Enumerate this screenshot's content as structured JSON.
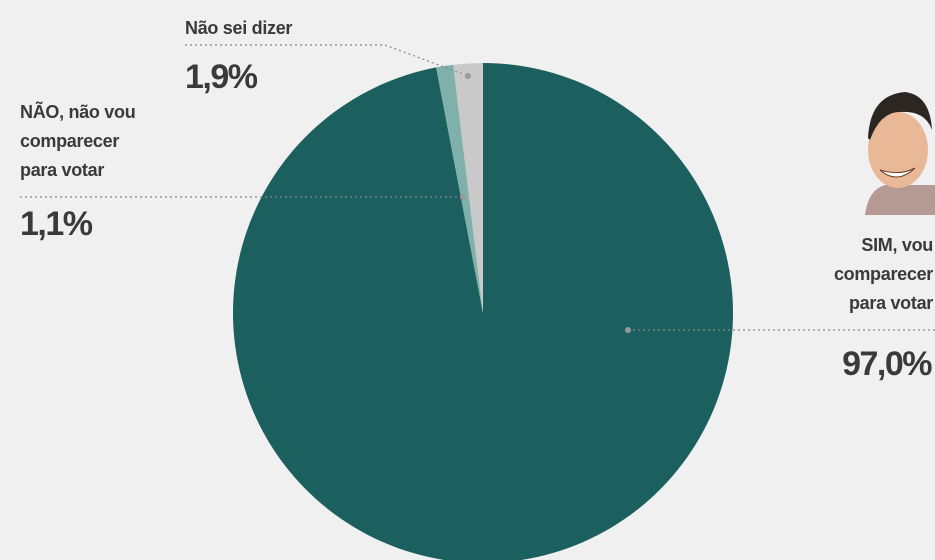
{
  "chart_data": {
    "type": "pie",
    "categories": [
      "SIM, vou comparecer para votar",
      "NÃO, não vou comparecer para votar",
      "Não sei dizer"
    ],
    "values": [
      97.0,
      1.1,
      1.9
    ],
    "value_labels": [
      "97,0%",
      "1,1%",
      "1,9%"
    ],
    "colors": [
      "#1c5f5f",
      "#7fb0aa",
      "#c9c9c9"
    ]
  }
}
